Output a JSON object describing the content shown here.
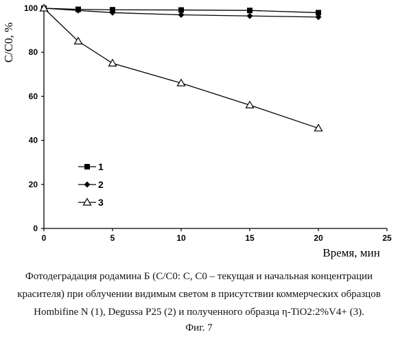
{
  "chart_data": {
    "type": "line",
    "ylabel": "C/C0, %",
    "xlabel": "Время, мин",
    "xlim": [
      0,
      25
    ],
    "ylim": [
      0,
      100
    ],
    "x_ticks": [
      0,
      5,
      10,
      15,
      20,
      25
    ],
    "y_ticks": [
      0,
      20,
      40,
      60,
      80,
      100
    ],
    "grid": false,
    "legend_position": "center-left",
    "series": [
      {
        "name": "1",
        "marker": "square",
        "color": "#000000",
        "x": [
          0,
          2.5,
          5,
          10,
          15,
          20
        ],
        "y": [
          100,
          99.5,
          99.3,
          99.2,
          99,
          98
        ]
      },
      {
        "name": "2",
        "marker": "diamond",
        "color": "#000000",
        "x": [
          0,
          2.5,
          5,
          10,
          15,
          20
        ],
        "y": [
          100,
          99,
          98,
          97,
          96.5,
          96
        ]
      },
      {
        "name": "3",
        "marker": "open-triangle",
        "color": "#000000",
        "x": [
          0,
          2.5,
          5,
          10,
          15,
          20
        ],
        "y": [
          100,
          85,
          75,
          66,
          56,
          45.5
        ]
      }
    ]
  },
  "caption": {
    "line1": "Фотодеградация родамина Б (C/C0: C, C0 – текущая и начальная концентрации",
    "line2": "красителя) при облучении видимым светом в присутствии коммерческих образцов",
    "line3": "Hombifine N (1), Degussa P25 (2) и полученного образца η-TiO2:2%V4+ (3)."
  },
  "figure_label": "Фиг. 7"
}
